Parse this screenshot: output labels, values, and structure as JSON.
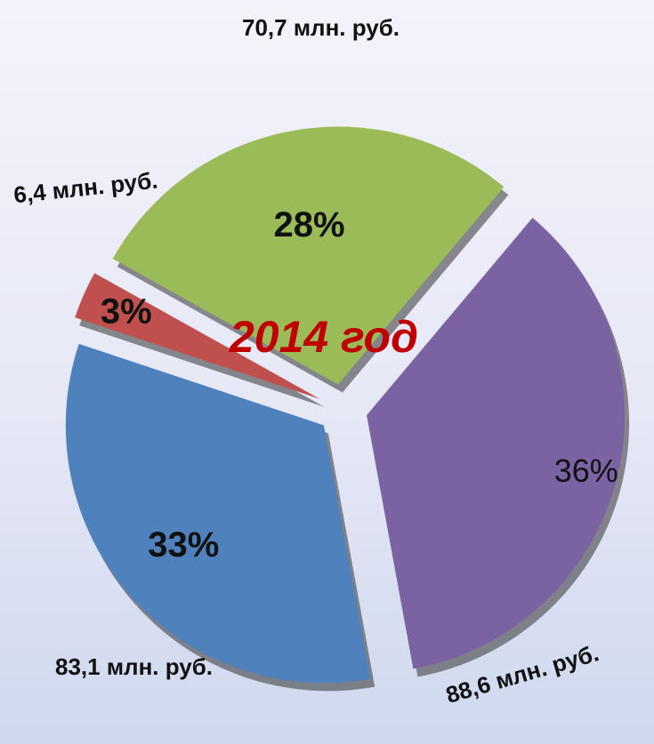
{
  "chart_data": {
    "type": "pie",
    "title": "2014 год",
    "values": [
      36,
      33,
      3,
      28
    ],
    "value_labels": [
      "36%",
      "33%",
      "3%",
      "28%"
    ],
    "colors": [
      "#7b62a3",
      "#4f81bd",
      "#c0504d",
      "#9bbb59"
    ],
    "annotations": [
      "88,6 млн. руб.",
      "83,1 млн. руб.",
      "6,4 млн. руб.",
      "70,7 млн. руб."
    ]
  }
}
